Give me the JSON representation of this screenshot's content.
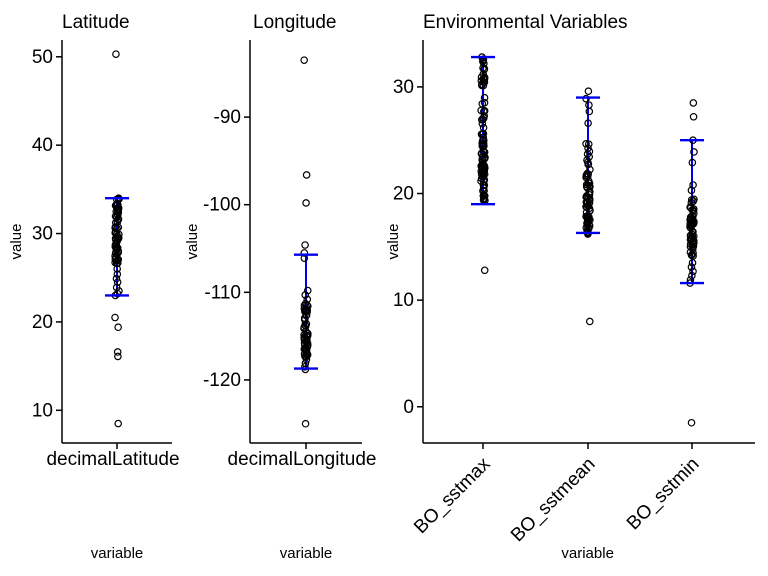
{
  "figure": {
    "background": "#ffffff",
    "point_color": "#000000",
    "box_color": "#0000ee",
    "axis_color": "#000000"
  },
  "chart_data": [
    {
      "type": "boxplot",
      "title": "Latitude",
      "ylabel": "value",
      "xlabel": "variable",
      "categories": [
        "decimalLatitude"
      ],
      "yticks": [
        10,
        20,
        30,
        40,
        50
      ],
      "ylim": [
        6.3,
        51.9
      ],
      "rotate_x_labels": false,
      "grid": false,
      "series": [
        {
          "category": "decimalLatitude",
          "whisker_high": 34.0,
          "whisker_low": 23.0,
          "dense_clusters": [
            {
              "min": 26.5,
              "max": 33.9,
              "n": 60
            }
          ],
          "points": [
            34.0,
            33.9,
            26.0,
            25.4,
            24.9,
            24.5,
            23.9,
            23.5,
            23.2,
            23.0
          ],
          "outliers": [
            50.3,
            20.5,
            19.4,
            16.6,
            16.1,
            8.5
          ]
        }
      ]
    },
    {
      "type": "boxplot",
      "title": "Longitude",
      "ylabel": "value",
      "xlabel": "variable",
      "categories": [
        "decimalLongitude"
      ],
      "yticks": [
        -90,
        -100,
        -110,
        -120
      ],
      "ylim": [
        -127.2,
        -81.2
      ],
      "rotate_x_labels": false,
      "grid": false,
      "series": [
        {
          "category": "decimalLongitude",
          "whisker_high": -105.7,
          "whisker_low": -118.7,
          "dense_clusters": [
            {
              "min": -117.4,
              "max": -111.2,
              "n": 55
            }
          ],
          "points": [
            -105.5,
            -106.1,
            -109.8,
            -110.3,
            -110.8,
            -117.7,
            -118.1,
            -118.5,
            -118.8
          ],
          "outliers": [
            -83.5,
            -96.6,
            -99.8,
            -104.6,
            -125.0
          ]
        }
      ]
    },
    {
      "type": "boxplot",
      "title": "Environmental Variables",
      "ylabel": "value",
      "xlabel": "variable",
      "categories": [
        "BO_sstmax",
        "BO_sstmean",
        "BO_sstmin"
      ],
      "yticks": [
        0,
        10,
        20,
        30
      ],
      "ylim": [
        -3.4,
        34.4
      ],
      "rotate_x_labels": true,
      "grid": false,
      "series": [
        {
          "category": "BO_sstmax",
          "whisker_high": 32.8,
          "whisker_low": 19.0,
          "dense_clusters": [
            {
              "min": 19.2,
              "max": 24.5,
              "n": 55
            },
            {
              "min": 24.5,
              "max": 32.7,
              "n": 40
            }
          ],
          "points": [
            32.8,
            32.5
          ],
          "outliers": [
            12.8
          ]
        },
        {
          "category": "BO_sstmean",
          "whisker_high": 29.0,
          "whisker_low": 16.3,
          "dense_clusters": [
            {
              "min": 16.3,
              "max": 22.5,
              "n": 55
            },
            {
              "min": 22.6,
              "max": 24.8,
              "n": 10
            }
          ],
          "points": [
            29.6,
            28.9,
            28.3,
            27.7,
            26.6,
            19.6,
            16.2
          ],
          "outliers": [
            8.0
          ]
        },
        {
          "category": "BO_sstmin",
          "whisker_high": 25.0,
          "whisker_low": 11.6,
          "dense_clusters": [
            {
              "min": 14.0,
              "max": 17.9,
              "n": 45
            },
            {
              "min": 18.0,
              "max": 19.8,
              "n": 10
            }
          ],
          "points": [
            25.0,
            23.9,
            22.9,
            20.8,
            20.3,
            13.5,
            13.1,
            12.7,
            12.3,
            11.9,
            11.6
          ],
          "outliers": [
            28.5,
            27.2,
            -1.5
          ]
        }
      ]
    }
  ]
}
